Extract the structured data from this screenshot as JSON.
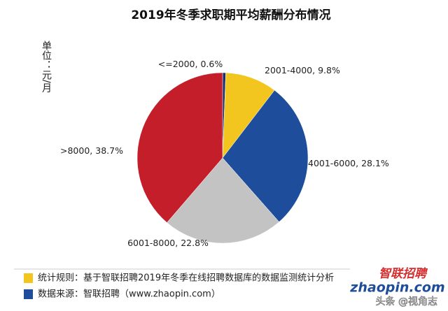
{
  "chart_data": {
    "type": "pie",
    "title": "2019年冬季求职期平均薪酬分布情况",
    "unit_label": "单位：元/月",
    "categories": [
      "<=2000",
      "2001-4000",
      "4001-6000",
      "6001-8000",
      ">8000"
    ],
    "values": [
      0.6,
      9.8,
      28.1,
      22.8,
      38.7
    ],
    "value_labels": [
      "0.6%",
      "9.8%",
      "28.1%",
      "22.8%",
      "38.7%"
    ],
    "label_separator": ", ",
    "colors": [
      "#1b2f6e",
      "#f2c61f",
      "#1d4d9b",
      "#c3c3c3",
      "#c41e2a"
    ],
    "start_angle": 0,
    "direction": "clockwise"
  },
  "footer": {
    "notes": [
      {
        "text": "统计规则：基于智联招聘2019年冬季在线招聘数据库的数据监测统计分析",
        "color": "#f2c61f"
      },
      {
        "text": "数据来源：智联招聘（www.zhaopin.com）",
        "color": "#1d4d9b"
      }
    ],
    "logo_cn": "智联招聘",
    "logo_en": "zhaopin.com",
    "watermark": "头条 @视角志"
  }
}
